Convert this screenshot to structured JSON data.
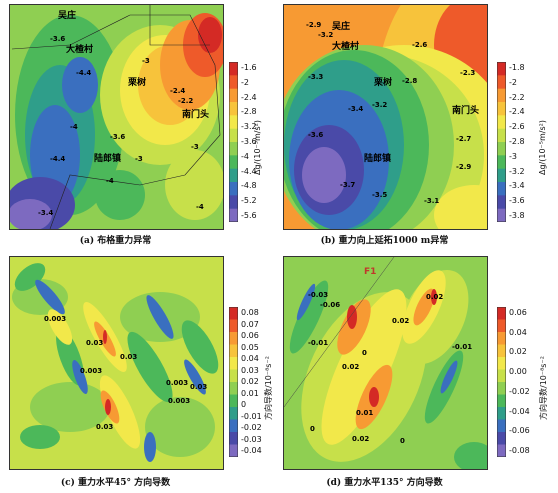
{
  "panels": [
    {
      "id": "a",
      "caption": "(a) 布格重力异常",
      "colorbar": {
        "title": "Δg/(10⁻⁵m/s²)",
        "ticks": [
          "-1.6",
          "-2",
          "-2.4",
          "-2.8",
          "-3.2",
          "-3.6",
          "-4",
          "-4.4",
          "-4.8",
          "-5.2",
          "-5.6"
        ],
        "colors": [
          "#d42a25",
          "#ee5a2a",
          "#f79a33",
          "#f7c33b",
          "#f2e84a",
          "#c7e04a",
          "#8fcf52",
          "#4cb85a",
          "#2f9e8a",
          "#3a6fbf",
          "#4a4aa8",
          "#7d6ac0"
        ]
      },
      "places": [
        {
          "name": "吴庄"
        },
        {
          "name": "大楂村"
        },
        {
          "name": "栗树"
        },
        {
          "name": "南门头"
        },
        {
          "name": "陆郎镇"
        }
      ],
      "contour_labels": [
        "-3.6",
        "-4.4",
        "-3",
        "-2.4",
        "-2.2",
        "-3.6",
        "-3",
        "-3.4",
        "-4",
        "-4",
        "-3",
        "-4.4",
        "-4"
      ]
    },
    {
      "id": "b",
      "caption": "(b) 重力向上延拓1000 m异常",
      "colorbar": {
        "title": "Δg/(10⁻⁵m/s²)",
        "ticks": [
          "-1.8",
          "-2",
          "-2.2",
          "-2.4",
          "-2.6",
          "-2.8",
          "-3",
          "-3.2",
          "-3.4",
          "-3.6",
          "-3.8"
        ],
        "colors": [
          "#d42a25",
          "#ee5a2a",
          "#f79a33",
          "#f7c33b",
          "#f2e84a",
          "#c7e04a",
          "#8fcf52",
          "#4cb85a",
          "#2f9e8a",
          "#3a6fbf",
          "#4a4aa8",
          "#7d6ac0"
        ]
      },
      "places": [
        {
          "name": "吴庄"
        },
        {
          "name": "大楂村"
        },
        {
          "name": "栗树"
        },
        {
          "name": "南门头"
        },
        {
          "name": "陆郎镇"
        }
      ],
      "contour_labels": [
        "-2.9",
        "-3.2",
        "-3.3",
        "-2.6",
        "-2.8",
        "-2.3",
        "-3.2",
        "-3.4",
        "-3.6",
        "-2.7",
        "-2.9",
        "-3.7",
        "-3.5",
        "-3.1"
      ]
    },
    {
      "id": "c",
      "caption": "(c) 重力水平45° 方向导数",
      "colorbar": {
        "title": "方向导数/10⁻⁸s⁻²",
        "ticks": [
          "0.08",
          "0.07",
          "0.06",
          "0.05",
          "0.04",
          "0.03",
          "0.02",
          "0.01",
          "0",
          "-0.01",
          "-0.02",
          "-0.03",
          "-0.04"
        ],
        "colors": [
          "#d42a25",
          "#ee5a2a",
          "#f79a33",
          "#f7c33b",
          "#f2e84a",
          "#c7e04a",
          "#8fcf52",
          "#4cb85a",
          "#2f9e8a",
          "#3a6fbf",
          "#4a4aa8",
          "#7d6ac0"
        ]
      },
      "places": [],
      "contour_labels": [
        "0.003",
        "0.03",
        "0.03",
        "0.003",
        "0.03",
        "0.003",
        "0.03",
        "0.003"
      ]
    },
    {
      "id": "d",
      "caption": "(d) 重力水平135° 方向导数",
      "colorbar": {
        "title": "方向导数/10⁻⁸s⁻²",
        "ticks": [
          "0.06",
          "0.04",
          "0.02",
          "0.00",
          "-0.02",
          "-0.04",
          "-0.06",
          "-0.08"
        ],
        "colors": [
          "#d42a25",
          "#ee5a2a",
          "#f79a33",
          "#f7c33b",
          "#f2e84a",
          "#c7e04a",
          "#8fcf52",
          "#4cb85a",
          "#2f9e8a",
          "#3a6fbf",
          "#4a4aa8",
          "#7d6ac0"
        ]
      },
      "places": [
        {
          "name": "F1"
        }
      ],
      "contour_labels": [
        "-0.03",
        "-0.06",
        "0.02",
        "0.02",
        "-0.01",
        "0.02",
        "0",
        "-0.01",
        "0.01",
        "0",
        "0.02",
        "0"
      ]
    }
  ]
}
